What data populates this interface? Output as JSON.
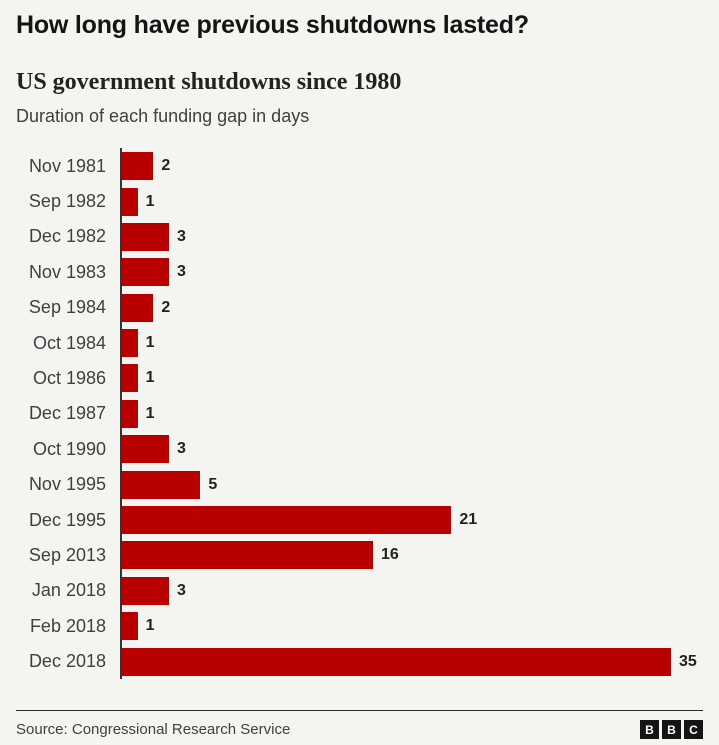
{
  "header": {
    "title": "How long have previous shutdowns lasted?",
    "subtitle": "US government shutdowns since 1980",
    "description": "Duration of each funding gap in days"
  },
  "chart_data": {
    "type": "bar",
    "orientation": "horizontal",
    "title": "US government shutdowns since 1980",
    "xlabel": "Duration of each funding gap in days",
    "ylabel": "",
    "categories": [
      "Nov 1981",
      "Sep 1982",
      "Dec 1982",
      "Nov 1983",
      "Sep 1984",
      "Oct 1984",
      "Oct 1986",
      "Dec 1987",
      "Oct 1990",
      "Nov 1995",
      "Dec 1995",
      "Sep 2013",
      "Jan 2018",
      "Feb 2018",
      "Dec 2018"
    ],
    "values": [
      2,
      1,
      3,
      3,
      2,
      1,
      1,
      1,
      3,
      5,
      21,
      16,
      3,
      1,
      35
    ],
    "xlim": [
      0,
      35
    ],
    "grid": false,
    "legend": false,
    "value_labels": true,
    "bar_color": "#b80000"
  },
  "footer": {
    "source": "Source: Congressional Research Service",
    "logo_letters": [
      "B",
      "B",
      "C"
    ]
  },
  "colors": {
    "background": "#f4f4f1",
    "bar": "#b80000",
    "title": "#141414",
    "secondary_text": "#404040",
    "value_label": "#222222",
    "axis": "#333333"
  }
}
